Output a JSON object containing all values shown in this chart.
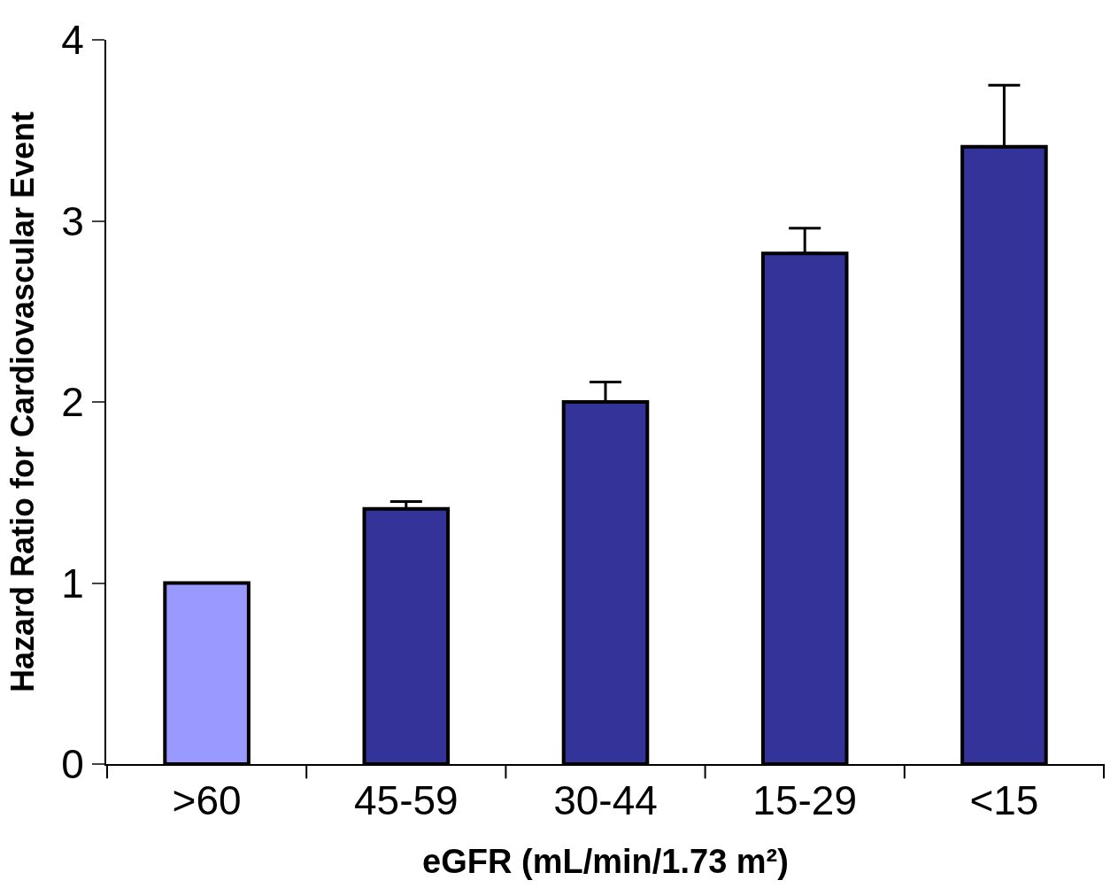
{
  "chart_data": {
    "type": "bar",
    "xlabel": "eGFR (mL/min/1.73 m²)",
    "ylabel": "Hazard Ratio for Cardiovascular Event",
    "categories": [
      ">60",
      "45-59",
      "30-44",
      "15-29",
      "<15"
    ],
    "values": [
      1.0,
      1.41,
      2.0,
      2.82,
      3.41
    ],
    "colors": [
      "#9999ff",
      "#333399",
      "#333399",
      "#333399",
      "#333399"
    ],
    "errors": [
      null,
      [
        1.41,
        1.45
      ],
      [
        2.0,
        2.11
      ],
      [
        2.82,
        2.96
      ],
      [
        3.41,
        3.75
      ]
    ],
    "ylim": [
      0,
      4
    ],
    "yticks": [
      0,
      1,
      2,
      3,
      4
    ]
  }
}
